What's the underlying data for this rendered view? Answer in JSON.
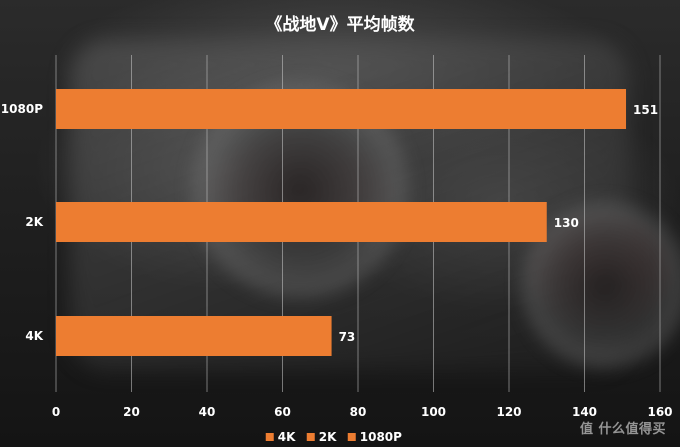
{
  "chart_data": {
    "type": "bar",
    "orientation": "horizontal",
    "title": "《战地V》平均帧数",
    "categories": [
      "1080P",
      "2K",
      "4K"
    ],
    "values": [
      151,
      130,
      73
    ],
    "xlim": [
      0,
      160
    ],
    "x_ticks": [
      0,
      20,
      40,
      60,
      80,
      100,
      120,
      140,
      160
    ],
    "grid": "vertical",
    "bar_color": "#ED7D31",
    "legend": {
      "position": "bottom",
      "entries": [
        "4K",
        "2K",
        "1080P"
      ]
    }
  },
  "watermark": "值 什么值得买"
}
